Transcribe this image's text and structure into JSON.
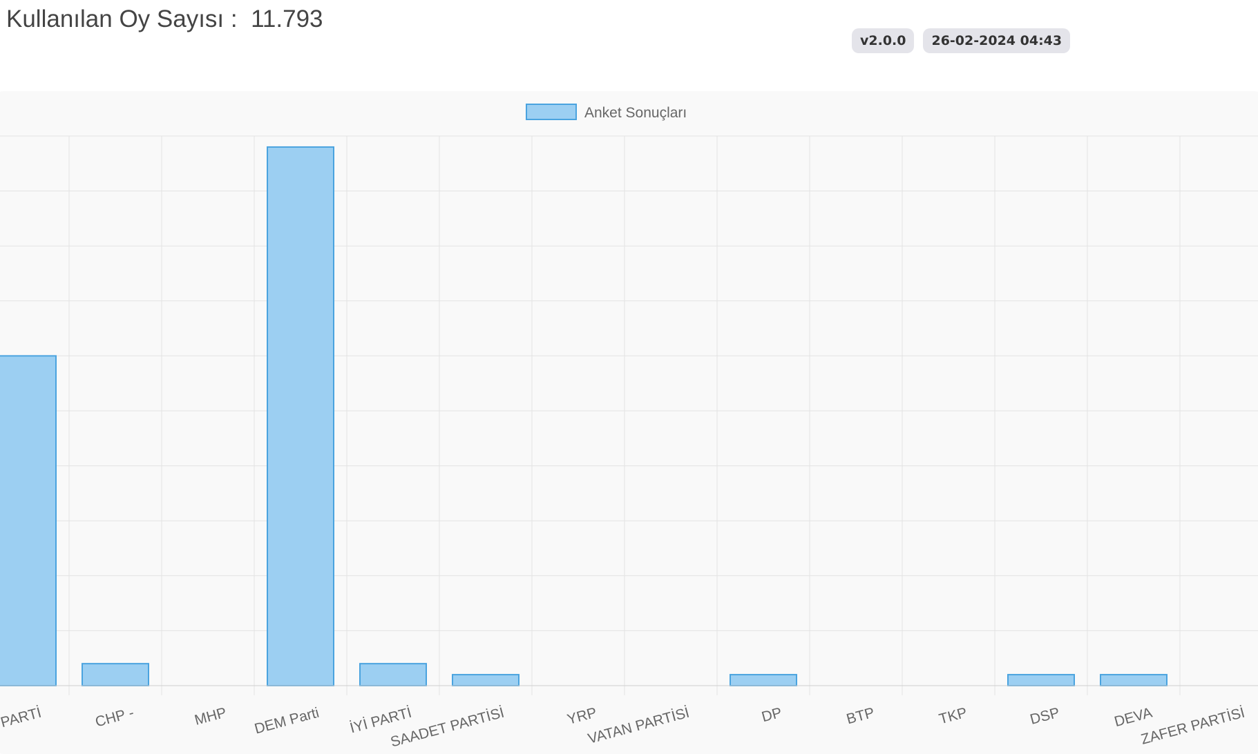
{
  "header": {
    "vote_count_label": "Kullanılan Oy Sayısı :",
    "vote_count_value": "11.793"
  },
  "badges": {
    "version": "v2.0.0",
    "timestamp": "26-02-2024 04:43"
  },
  "colors": {
    "bar_fill": "#9ccff2",
    "bar_stroke": "#4aa3df",
    "grid": "#e3e3e3",
    "badge_bg": "#e4e4ea"
  },
  "chart_data": {
    "type": "bar",
    "title": "",
    "xlabel": "",
    "ylabel": "",
    "categories": [
      "AK PARTİ",
      "CHP -",
      "MHP",
      "DEM Parti",
      "İYİ PARTİ",
      "SAADET PARTİSİ",
      "YRP",
      "VATAN PARTİSİ",
      "DP",
      "BTP",
      "TKP",
      "DSP",
      "DEVA",
      "ZAFER PARTİSİ"
    ],
    "series": [
      {
        "name": "Anket Sonuçları",
        "values": [
          6.0,
          0.4,
          0.0,
          9.8,
          0.4,
          0.2,
          0.0,
          0.0,
          0.2,
          0.0,
          0.0,
          0.2,
          0.2,
          0.0
        ]
      }
    ],
    "ylim": [
      0,
      10
    ],
    "y_gridlines": 10,
    "grid": true,
    "y_tick_labels_visible": false,
    "x_tick_label_rotation": "slanted",
    "legend_position": "top-center"
  }
}
